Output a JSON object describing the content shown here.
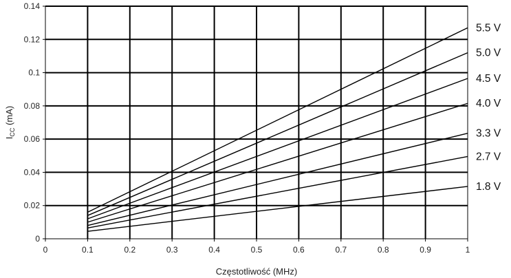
{
  "chart_data": {
    "type": "line",
    "title": "",
    "xlabel": "Częstotliwość (MHz)",
    "ylabel": {
      "main": "I",
      "sub": "CC",
      "rest": " (mA)"
    },
    "xlim": [
      0,
      1
    ],
    "ylim": [
      0,
      0.14
    ],
    "x_ticks": [
      "0",
      "0.1",
      "0.2",
      "0.3",
      "0.4",
      "0.5",
      "0.6",
      "0.7",
      "0.8",
      "0.9",
      "1"
    ],
    "y_ticks": [
      "0",
      "0.02",
      "0.04",
      "0.06",
      "0.08",
      "0.1",
      "0.12",
      "0.14"
    ],
    "grid": true,
    "x": [
      0.1,
      1.0
    ],
    "series": [
      {
        "name": "5.5 V",
        "values": [
          0.016,
          0.127
        ]
      },
      {
        "name": "5.0 V",
        "values": [
          0.014,
          0.112
        ]
      },
      {
        "name": "4.5 V",
        "values": [
          0.012,
          0.0965
        ]
      },
      {
        "name": "4.0 V",
        "values": [
          0.01,
          0.0815
        ]
      },
      {
        "name": "3.3 V",
        "values": [
          0.008,
          0.0635
        ]
      },
      {
        "name": "2.7 V",
        "values": [
          0.0065,
          0.0495
        ]
      },
      {
        "name": "1.8 V",
        "values": [
          0.0045,
          0.0315
        ]
      }
    ],
    "legend_placement": "right, labels at line ends",
    "line_color": "#000000",
    "grid_color": "#000000"
  }
}
